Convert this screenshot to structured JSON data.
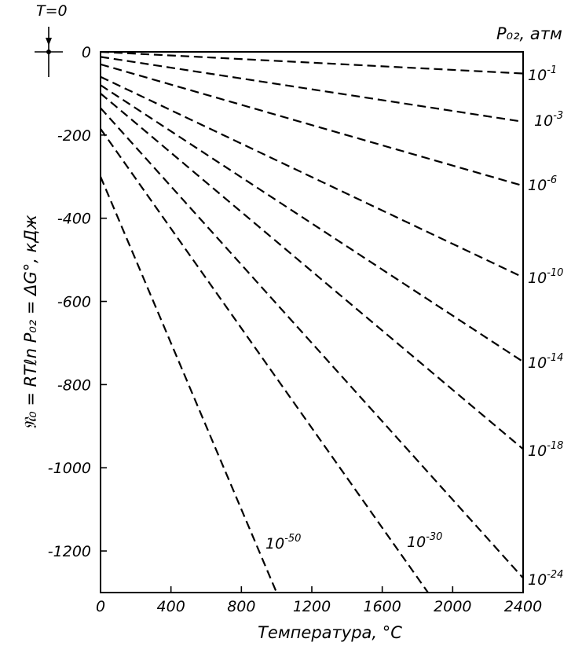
{
  "chart_data": {
    "type": "line",
    "xlabel": "Температура, °С",
    "ylabel": "𝔑₀ = RTℓn P₀₂ = ΔG°, кДж",
    "right_axis_label": "P₀₂, атм",
    "corner_label": "T=0",
    "xlim": [
      0,
      2400
    ],
    "ylim": [
      -1300,
      0
    ],
    "xticks": [
      "0",
      "400",
      "800",
      "1200",
      "1600",
      "2000",
      "2400"
    ],
    "yticks": [
      "0",
      "-200",
      "-400",
      "-600",
      "-800",
      "-1000",
      "-1200"
    ],
    "grid": false,
    "series": [
      {
        "label_base": "10",
        "label_exp": "-1",
        "y0": 0,
        "y2400": -52
      },
      {
        "label_base": "10",
        "label_exp": "-3",
        "y0": -12,
        "y2400": -168
      },
      {
        "label_base": "10",
        "label_exp": "-6",
        "y0": -30,
        "y2400": -322
      },
      {
        "label_base": "10",
        "label_exp": "-10",
        "y0": -60,
        "y2400": -542
      },
      {
        "label_base": "10",
        "label_exp": "-14",
        "y0": -80,
        "y2400": -745
      },
      {
        "label_base": "10",
        "label_exp": "-18",
        "y0": -100,
        "y2400": -955
      },
      {
        "label_base": "10",
        "label_exp": "-24",
        "y0": -135,
        "y2400": -1265
      },
      {
        "label_base": "10",
        "label_exp": "-30",
        "y0": -185,
        "x_end": 1860
      },
      {
        "label_base": "10",
        "label_exp": "-50",
        "y0": -300,
        "x_end": 1000
      }
    ]
  }
}
